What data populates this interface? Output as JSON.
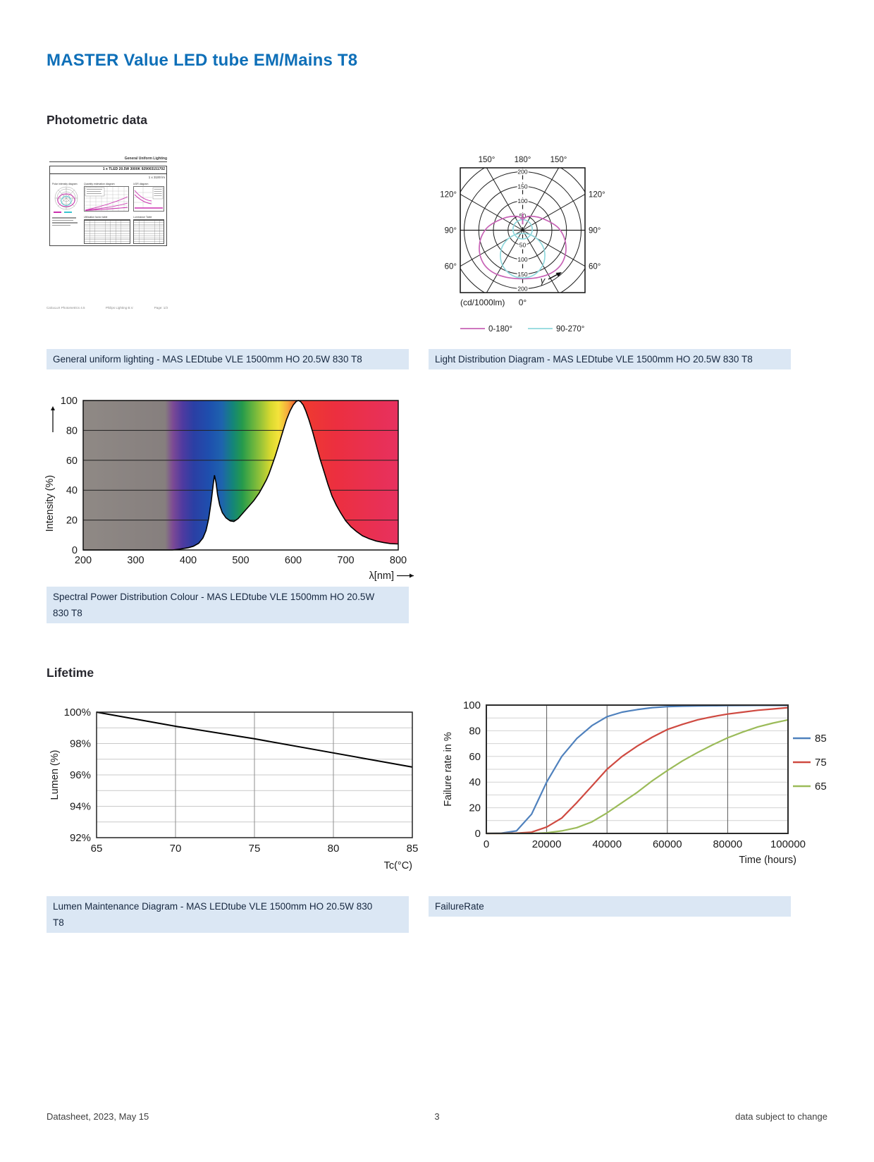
{
  "page": {
    "title": "MASTER Value LED tube EM/Mains T8",
    "sections": {
      "photometric": "Photometric data",
      "lifetime": "Lifetime"
    },
    "footer": {
      "left": "Datasheet, 2023, May 15",
      "page": "3",
      "right": "data subject to change"
    }
  },
  "thumbnail": {
    "header": "General Uniform Lighting",
    "doc_title": "1 x TLED 20.5W 3000K 929003151702",
    "lumens": "1 x 3100 lm",
    "chart1_title": "Polar intensity diagram",
    "chart2_title": "Quantity estimation diagram",
    "chart3_title": "UGR diagram",
    "table1_title": "Utilisation factor table",
    "table2_title": "Luminance Table",
    "footer_left": "CalcuLuX Photometrics 4.5",
    "footer_mid": "Philips Lighting B.V.",
    "footer_right": "Page: 1/3"
  },
  "captions": {
    "general": "General uniform lighting - MAS LEDtube VLE 1500mm HO 20.5W 830 T8",
    "light_dist": "Light Distribution Diagram - MAS LEDtube VLE 1500mm HO 20.5W 830 T8",
    "spd_line1": "Spectral Power Distribution Colour - MAS LEDtube VLE 1500mm HO 20.5W",
    "spd_line2": "830 T8",
    "lumen_line1": "Lumen Maintenance Diagram - MAS LEDtube VLE 1500mm HO 20.5W 830",
    "lumen_line2": "T8",
    "failure": "FailureRate"
  },
  "chart_data": [
    {
      "id": "light_distribution",
      "type": "polar",
      "title": "Light Distribution Diagram - MAS LEDtube VLE 1500mm HO 20.5W 830 T8",
      "unit": "(cd/1000lm)",
      "ring_ticks": [
        50,
        100,
        150,
        200
      ],
      "angle_labels": {
        "top": [
          "150°",
          "180°",
          "150°"
        ],
        "left": [
          "120°",
          "90°",
          "60°"
        ],
        "right": [
          "120°",
          "90°",
          "60°"
        ],
        "bottom": "0°"
      },
      "gamma_label": "γ",
      "legend": [
        {
          "name": "0-180°",
          "color": "#c763b6"
        },
        {
          "name": "90-270°",
          "color": "#8fd8dd"
        }
      ],
      "series": [
        {
          "name": "0-180°",
          "color": "#c763b6",
          "outline": [
            [
              0,
              36
            ],
            [
              10,
              44
            ],
            [
              25,
              48
            ],
            [
              55,
              44
            ],
            [
              90,
              30
            ],
            [
              120,
              10
            ],
            [
              138,
              -16
            ],
            [
              147,
              -45
            ],
            [
              147,
              -78
            ],
            [
              136,
              -110
            ],
            [
              116,
              -134
            ],
            [
              88,
              -151
            ],
            [
              55,
              -161
            ],
            [
              25,
              -165
            ],
            [
              0,
              -166
            ],
            [
              -25,
              -165
            ],
            [
              -55,
              -161
            ],
            [
              -88,
              -151
            ],
            [
              -116,
              -134
            ],
            [
              -136,
              -110
            ],
            [
              -147,
              -78
            ],
            [
              -147,
              -45
            ],
            [
              -138,
              -16
            ],
            [
              -120,
              10
            ],
            [
              -90,
              30
            ],
            [
              -55,
              44
            ],
            [
              -25,
              48
            ],
            [
              -10,
              44
            ]
          ]
        },
        {
          "name": "90-270°",
          "color": "#8fd8dd",
          "circles": [
            {
              "cx": 0,
              "cy": 3,
              "r": 33
            },
            {
              "cx": 0,
              "cy": -87,
              "r": 76
            }
          ]
        }
      ],
      "spike": [
        [
          0,
          20
        ],
        [
          0,
          57
        ]
      ]
    },
    {
      "id": "spd",
      "type": "area",
      "title": "Spectral Power Distribution Colour - MAS LEDtube VLE 1500mm HO 20.5W 830 T8",
      "xlabel": "λ[nm]",
      "ylabel": "Intensity (%)",
      "xlim": [
        200,
        800
      ],
      "ylim": [
        0,
        100
      ],
      "xticks": [
        200,
        300,
        400,
        500,
        600,
        700,
        800
      ],
      "yticks": [
        0,
        20,
        40,
        60,
        80,
        100
      ],
      "points": [
        [
          200,
          0
        ],
        [
          370,
          0
        ],
        [
          385,
          0.6
        ],
        [
          400,
          1.5
        ],
        [
          410,
          2.5
        ],
        [
          420,
          4.5
        ],
        [
          428,
          8
        ],
        [
          434,
          13
        ],
        [
          439,
          21
        ],
        [
          444,
          33
        ],
        [
          448,
          45
        ],
        [
          450,
          50
        ],
        [
          453,
          45
        ],
        [
          456,
          37
        ],
        [
          460,
          30
        ],
        [
          465,
          25
        ],
        [
          472,
          21.5
        ],
        [
          480,
          19.5
        ],
        [
          487,
          19
        ],
        [
          495,
          21
        ],
        [
          505,
          25
        ],
        [
          515,
          29
        ],
        [
          525,
          33
        ],
        [
          535,
          38
        ],
        [
          543,
          43
        ],
        [
          549,
          47
        ],
        [
          554,
          51
        ],
        [
          560,
          57
        ],
        [
          566,
          63
        ],
        [
          573,
          71
        ],
        [
          580,
          79
        ],
        [
          587,
          87
        ],
        [
          594,
          93
        ],
        [
          600,
          97
        ],
        [
          606,
          99.5
        ],
        [
          610,
          100
        ],
        [
          614,
          99.3
        ],
        [
          619,
          97
        ],
        [
          624,
          93
        ],
        [
          630,
          87
        ],
        [
          637,
          79
        ],
        [
          644,
          70
        ],
        [
          651,
          61
        ],
        [
          659,
          52
        ],
        [
          666,
          44
        ],
        [
          674,
          36
        ],
        [
          682,
          30
        ],
        [
          690,
          25
        ],
        [
          700,
          19.5
        ],
        [
          710,
          15.5
        ],
        [
          720,
          12.5
        ],
        [
          732,
          9.5
        ],
        [
          745,
          7.5
        ],
        [
          758,
          6
        ],
        [
          772,
          5
        ],
        [
          785,
          4.3
        ],
        [
          800,
          4
        ]
      ]
    },
    {
      "id": "lumen_maintenance",
      "type": "line",
      "title": "Lumen Maintenance Diagram - MAS LEDtube VLE 1500mm HO 20.5W 830 T8",
      "xlabel": "Tc(°C)",
      "ylabel": "Lumen (%)",
      "xlim": [
        65,
        85
      ],
      "ylim": [
        92,
        100
      ],
      "xticks": [
        65,
        70,
        75,
        80,
        85
      ],
      "yticks": [
        {
          "v": 100,
          "label": "100%"
        },
        {
          "v": 98,
          "label": "98%"
        },
        {
          "v": 96,
          "label": "96%"
        },
        {
          "v": 94,
          "label": "94%"
        },
        {
          "v": 92,
          "label": "92%"
        }
      ],
      "minor_y": [
        93,
        94,
        95,
        96,
        97,
        98,
        99
      ],
      "grid_x": [
        70,
        75,
        80
      ],
      "points": [
        [
          65,
          100
        ],
        [
          70,
          99.1
        ],
        [
          75,
          98.3
        ],
        [
          80,
          97.4
        ],
        [
          85,
          96.5
        ]
      ]
    },
    {
      "id": "failure_rate",
      "type": "line",
      "title": "FailureRate",
      "xlabel": "Time (hours)",
      "ylabel": "Failure rate in %",
      "xlim": [
        0,
        100000
      ],
      "ylim": [
        0,
        100
      ],
      "x_step": 5000,
      "xticks": [
        0,
        20000,
        40000,
        60000,
        80000,
        100000
      ],
      "xtick_labels": [
        "0",
        "20000",
        "40000",
        "60000",
        "80000",
        "100000"
      ],
      "yticks": [
        0,
        20,
        40,
        60,
        80,
        100
      ],
      "minor_y": [
        10,
        20,
        30,
        40,
        50,
        60,
        70,
        80,
        90
      ],
      "grid_x": [
        20000,
        40000,
        60000,
        80000
      ],
      "legend_position": "right",
      "series": [
        {
          "name": "85",
          "color": "#4f81bd",
          "values": [
            0,
            0.2,
            2,
            15,
            40,
            60,
            74,
            84,
            91,
            94.5,
            96.5,
            98,
            98.8,
            99.2,
            99.4,
            99.5,
            99.6,
            99.7,
            99.8,
            99.8,
            99.8
          ]
        },
        {
          "name": "75",
          "color": "#cf4a41",
          "values": [
            0,
            0,
            0.2,
            1,
            5,
            12,
            24,
            37,
            50,
            60,
            68,
            75,
            81,
            85,
            88.5,
            91,
            93,
            94.5,
            96,
            97,
            98
          ]
        },
        {
          "name": "65",
          "color": "#9bbb59",
          "values": [
            0,
            0,
            0,
            0,
            0.5,
            2,
            4.5,
            9,
            16,
            24,
            32,
            41,
            49,
            56.5,
            63,
            69,
            74.5,
            79,
            83,
            86,
            88.5
          ]
        }
      ]
    }
  ]
}
